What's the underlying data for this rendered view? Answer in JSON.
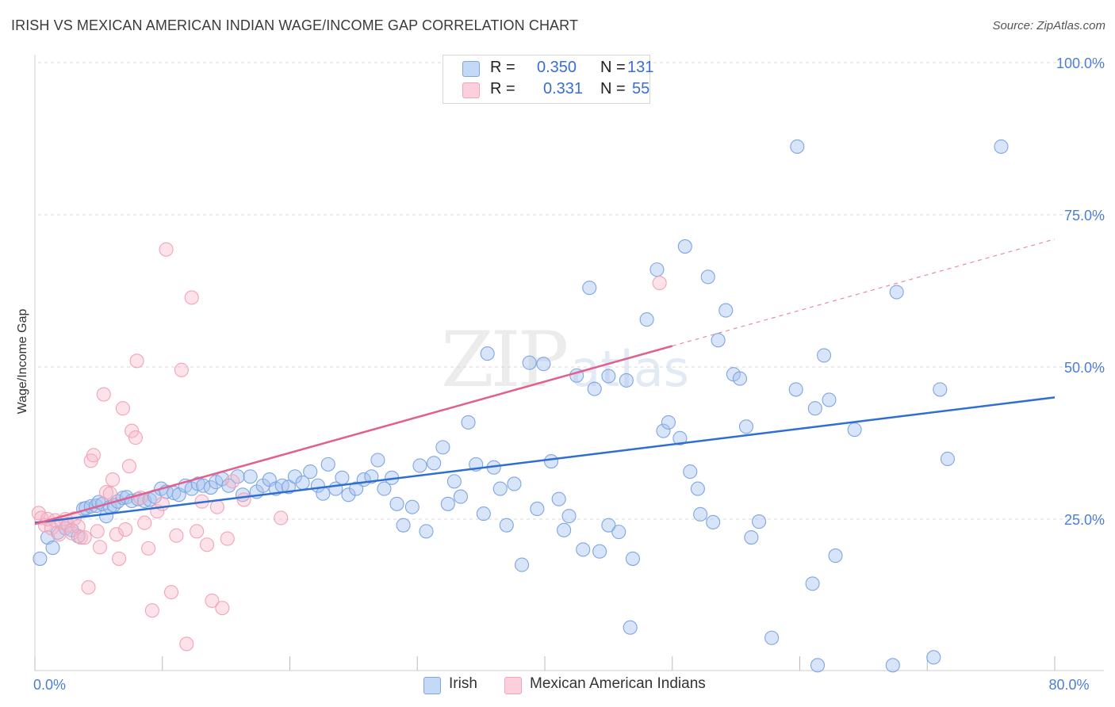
{
  "header": {
    "title": "IRISH VS MEXICAN AMERICAN INDIAN WAGE/INCOME GAP CORRELATION CHART",
    "source": "Source: ZipAtlas.com"
  },
  "legend": {
    "rows": [
      {
        "r_label": "R =",
        "r_value": "0.350",
        "n_label": "N =",
        "n_value": "131",
        "color": "#a9c4ef"
      },
      {
        "r_label": "R =",
        "r_value": "0.331",
        "n_label": "N =",
        "n_value": "55",
        "color": "#f5b8c8"
      }
    ]
  },
  "bottom_legend": {
    "irish": "Irish",
    "mexican": "Mexican American Indians"
  },
  "watermark": {
    "zip": "ZIP",
    "atlas": "atlas"
  },
  "chart_data": {
    "type": "scatter",
    "title": "IRISH VS MEXICAN AMERICAN INDIAN WAGE/INCOME GAP CORRELATION CHART",
    "xlabel": "",
    "ylabel": "Wage/Income Gap",
    "xlim": [
      0,
      80
    ],
    "ylim": [
      0,
      105
    ],
    "x_tick_labels": [
      {
        "value": 0,
        "label": "0.0%"
      },
      {
        "value": 80,
        "label": "80.0%"
      }
    ],
    "y_tick_labels": [
      {
        "value": 25,
        "label": "25.0%"
      },
      {
        "value": 50,
        "label": "50.0%"
      },
      {
        "value": 75,
        "label": "75.0%"
      },
      {
        "value": 100,
        "label": "100.0%"
      }
    ],
    "grid": true,
    "legend_position": "top-center",
    "series": [
      {
        "name": "Irish",
        "color": "#7ea6e3",
        "line_color": "#2e6fd0",
        "trend": {
          "x": [
            0,
            80
          ],
          "y": [
            24.4,
            45.0
          ],
          "dashed_after": null
        },
        "points": [
          [
            0.4,
            18.5
          ],
          [
            1.0,
            22.0
          ],
          [
            1.4,
            20.3
          ],
          [
            1.8,
            22.8
          ],
          [
            2.4,
            23.5
          ],
          [
            2.9,
            23.2
          ],
          [
            3.4,
            22.2
          ],
          [
            3.8,
            26.7
          ],
          [
            4.0,
            26.8
          ],
          [
            4.4,
            27.1
          ],
          [
            4.8,
            27.2
          ],
          [
            5.0,
            27.8
          ],
          [
            5.3,
            27.5
          ],
          [
            5.6,
            25.5
          ],
          [
            5.9,
            27.0
          ],
          [
            6.2,
            27.3
          ],
          [
            6.5,
            27.9
          ],
          [
            6.9,
            28.5
          ],
          [
            7.2,
            28.6
          ],
          [
            7.6,
            28.0
          ],
          [
            8.1,
            28.3
          ],
          [
            8.6,
            28.0
          ],
          [
            9.0,
            28.2
          ],
          [
            9.4,
            28.7
          ],
          [
            9.9,
            30.0
          ],
          [
            10.3,
            29.5
          ],
          [
            10.9,
            29.3
          ],
          [
            11.3,
            29.0
          ],
          [
            11.8,
            30.5
          ],
          [
            12.3,
            30.0
          ],
          [
            12.8,
            30.8
          ],
          [
            13.2,
            30.5
          ],
          [
            13.8,
            30.2
          ],
          [
            14.2,
            31.1
          ],
          [
            14.7,
            31.6
          ],
          [
            15.2,
            30.5
          ],
          [
            15.9,
            32.0
          ],
          [
            16.3,
            29.0
          ],
          [
            16.9,
            32.0
          ],
          [
            17.4,
            29.5
          ],
          [
            17.9,
            30.5
          ],
          [
            18.4,
            31.5
          ],
          [
            18.9,
            30.0
          ],
          [
            19.4,
            30.5
          ],
          [
            19.9,
            30.3
          ],
          [
            20.4,
            32.0
          ],
          [
            21.0,
            31.0
          ],
          [
            21.6,
            32.8
          ],
          [
            22.2,
            30.5
          ],
          [
            22.6,
            29.2
          ],
          [
            23.0,
            34.0
          ],
          [
            23.6,
            30.0
          ],
          [
            24.1,
            31.8
          ],
          [
            24.6,
            29.0
          ],
          [
            25.2,
            30.0
          ],
          [
            25.8,
            31.5
          ],
          [
            26.4,
            32.0
          ],
          [
            26.9,
            34.7
          ],
          [
            27.4,
            30.0
          ],
          [
            28.0,
            31.8
          ],
          [
            28.4,
            27.5
          ],
          [
            28.9,
            24.0
          ],
          [
            29.6,
            27.0
          ],
          [
            30.2,
            33.8
          ],
          [
            30.7,
            23.0
          ],
          [
            31.3,
            34.2
          ],
          [
            32.0,
            36.8
          ],
          [
            32.4,
            27.5
          ],
          [
            32.9,
            31.2
          ],
          [
            33.4,
            28.7
          ],
          [
            34.0,
            40.9
          ],
          [
            34.6,
            34.0
          ],
          [
            35.2,
            25.9
          ],
          [
            35.5,
            52.2
          ],
          [
            36.0,
            33.5
          ],
          [
            36.5,
            30.0
          ],
          [
            37.0,
            24.0
          ],
          [
            37.6,
            30.8
          ],
          [
            38.2,
            17.5
          ],
          [
            38.8,
            50.7
          ],
          [
            39.4,
            26.7
          ],
          [
            39.9,
            50.5
          ],
          [
            40.5,
            34.5
          ],
          [
            41.1,
            28.3
          ],
          [
            41.5,
            23.2
          ],
          [
            41.9,
            25.5
          ],
          [
            42.5,
            48.6
          ],
          [
            43.0,
            20.0
          ],
          [
            43.5,
            63.0
          ],
          [
            43.9,
            46.4
          ],
          [
            44.3,
            19.7
          ],
          [
            45.0,
            48.5
          ],
          [
            45.8,
            22.9
          ],
          [
            46.4,
            47.8
          ],
          [
            46.9,
            18.5
          ],
          [
            46.7,
            7.2
          ],
          [
            48.0,
            57.8
          ],
          [
            48.8,
            66.0
          ],
          [
            49.3,
            39.5
          ],
          [
            49.7,
            40.9
          ],
          [
            50.6,
            38.3
          ],
          [
            51.0,
            69.8
          ],
          [
            51.4,
            32.8
          ],
          [
            52.2,
            25.8
          ],
          [
            52.8,
            64.8
          ],
          [
            53.2,
            24.5
          ],
          [
            53.6,
            54.4
          ],
          [
            54.2,
            59.3
          ],
          [
            54.8,
            48.8
          ],
          [
            55.3,
            48.1
          ],
          [
            55.8,
            40.2
          ],
          [
            56.2,
            22.0
          ],
          [
            56.8,
            24.6
          ],
          [
            57.8,
            5.5
          ],
          [
            59.7,
            46.3
          ],
          [
            59.8,
            86.2
          ],
          [
            61.2,
            43.2
          ],
          [
            61.0,
            14.4
          ],
          [
            61.4,
            1.0
          ],
          [
            61.9,
            51.9
          ],
          [
            62.3,
            44.6
          ],
          [
            62.8,
            19.0
          ],
          [
            64.3,
            39.7
          ],
          [
            67.3,
            1.0
          ],
          [
            67.6,
            62.3
          ],
          [
            71.0,
            46.3
          ],
          [
            71.6,
            34.9
          ],
          [
            70.5,
            2.3
          ],
          [
            75.8,
            86.2
          ],
          [
            52.0,
            30.0
          ],
          [
            45.0,
            24.0
          ]
        ]
      },
      {
        "name": "Mexican American Indians",
        "color": "#f4a3b9",
        "line_color": "#e06090",
        "trend": {
          "x": [
            0,
            80
          ],
          "y": [
            24.2,
            71.0
          ],
          "solid_until": 50
        },
        "points": [
          [
            0.3,
            26.0
          ],
          [
            0.5,
            25.2
          ],
          [
            0.8,
            24.0
          ],
          [
            1.0,
            25.0
          ],
          [
            1.3,
            23.5
          ],
          [
            1.6,
            24.8
          ],
          [
            1.9,
            22.5
          ],
          [
            2.1,
            24.5
          ],
          [
            2.4,
            25.0
          ],
          [
            2.6,
            24.0
          ],
          [
            2.9,
            22.7
          ],
          [
            3.1,
            25.1
          ],
          [
            3.4,
            23.8
          ],
          [
            3.6,
            22.0
          ],
          [
            3.9,
            22.0
          ],
          [
            4.2,
            13.8
          ],
          [
            4.4,
            34.6
          ],
          [
            4.6,
            35.5
          ],
          [
            4.9,
            23.0
          ],
          [
            5.1,
            20.4
          ],
          [
            5.4,
            45.5
          ],
          [
            5.6,
            29.4
          ],
          [
            5.9,
            29.2
          ],
          [
            6.1,
            31.5
          ],
          [
            6.4,
            22.5
          ],
          [
            6.6,
            18.5
          ],
          [
            6.9,
            43.2
          ],
          [
            7.1,
            23.3
          ],
          [
            7.4,
            33.7
          ],
          [
            7.6,
            39.5
          ],
          [
            7.9,
            38.4
          ],
          [
            8.3,
            28.5
          ],
          [
            8.6,
            24.4
          ],
          [
            8.9,
            20.2
          ],
          [
            9.2,
            10.0
          ],
          [
            9.6,
            26.3
          ],
          [
            10.0,
            27.5
          ],
          [
            10.3,
            69.3
          ],
          [
            10.7,
            13.0
          ],
          [
            11.1,
            22.3
          ],
          [
            11.5,
            49.5
          ],
          [
            11.9,
            4.5
          ],
          [
            12.3,
            61.4
          ],
          [
            12.7,
            23.0
          ],
          [
            13.1,
            27.9
          ],
          [
            13.5,
            20.8
          ],
          [
            13.9,
            11.6
          ],
          [
            14.3,
            27.0
          ],
          [
            14.7,
            10.4
          ],
          [
            15.1,
            21.8
          ],
          [
            15.5,
            31.2
          ],
          [
            16.4,
            28.2
          ],
          [
            19.3,
            25.2
          ],
          [
            49.0,
            63.8
          ],
          [
            8.0,
            51.0
          ]
        ]
      }
    ]
  }
}
